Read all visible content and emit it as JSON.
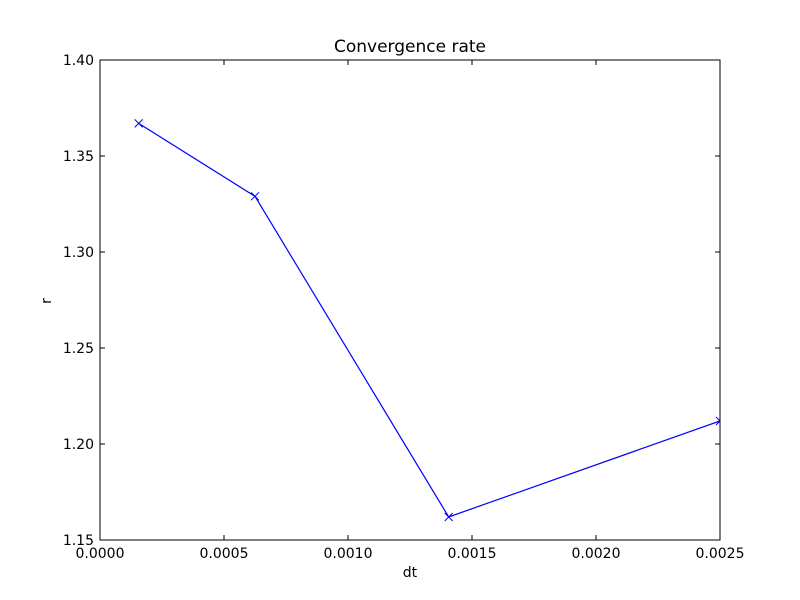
{
  "chart_data": {
    "type": "line",
    "title": "Convergence rate",
    "xlabel": "dt",
    "ylabel": "r",
    "xlim": [
      0.0,
      0.0025
    ],
    "ylim": [
      1.15,
      1.4
    ],
    "x_ticks": [
      0.0,
      0.0005,
      0.001,
      0.0015,
      0.002,
      0.0025
    ],
    "x_tick_labels": [
      "0.0000",
      "0.0005",
      "0.0010",
      "0.0015",
      "0.0020",
      "0.0025"
    ],
    "y_ticks": [
      1.15,
      1.2,
      1.25,
      1.3,
      1.35,
      1.4
    ],
    "y_tick_labels": [
      "1.15",
      "1.20",
      "1.25",
      "1.30",
      "1.35",
      "1.40"
    ],
    "grid": false,
    "legend": false,
    "series": [
      {
        "color": "#0000ff",
        "marker": "x",
        "x": [
          0.000156,
          0.000625,
          0.001406,
          0.0025
        ],
        "y": [
          1.367,
          1.329,
          1.162,
          1.212
        ]
      }
    ]
  }
}
